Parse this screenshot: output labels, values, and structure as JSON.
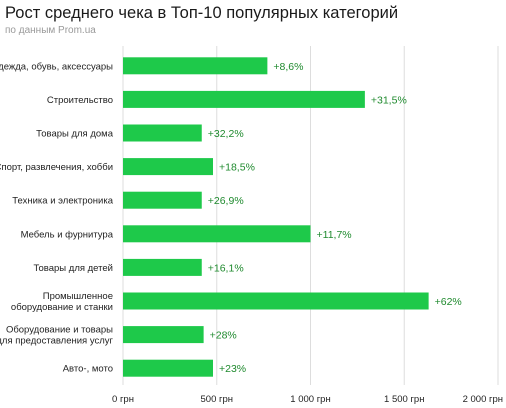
{
  "title": "Рост среднего чека в Топ-10 популярных категорий",
  "subtitle": "по данным Prom.ua",
  "colors": {
    "bar": "#1ec94a",
    "value_label": "#1f8a2e",
    "grid": "#dddddd"
  },
  "chart_data": {
    "type": "bar",
    "orientation": "horizontal",
    "title": "Рост среднего чека в Топ-10 популярных категорий",
    "subtitle": "по данным Prom.ua",
    "categories": [
      [
        "Одежда, обувь, аксессуары"
      ],
      [
        "Строительство"
      ],
      [
        "Товары для дома"
      ],
      [
        "Спорт, развлечения, хобби"
      ],
      [
        "Техника и электроника"
      ],
      [
        "Мебель и фурнитура"
      ],
      [
        "Товары для детей"
      ],
      [
        "Промышленное",
        "оборудование и станки"
      ],
      [
        "Оборудование и товары",
        "для предоставления услуг"
      ],
      [
        "Авто-, мото"
      ]
    ],
    "values": [
      770,
      1290,
      420,
      480,
      420,
      1000,
      420,
      1630,
      430,
      480
    ],
    "labels": [
      "+8,6%",
      "+31,5%",
      "+32,2%",
      "+18,5%",
      "+26,9%",
      "+11,7%",
      "+16,1%",
      "+62%",
      "+28%",
      "+23%"
    ],
    "xlim": [
      0,
      2000
    ],
    "xticks": [
      0,
      500,
      1000,
      1500,
      2000
    ],
    "xtick_labels": [
      "0 грн",
      "500 грн",
      "1 000 грн",
      "1 500 грн",
      "2 000 грн"
    ],
    "grid": true
  }
}
